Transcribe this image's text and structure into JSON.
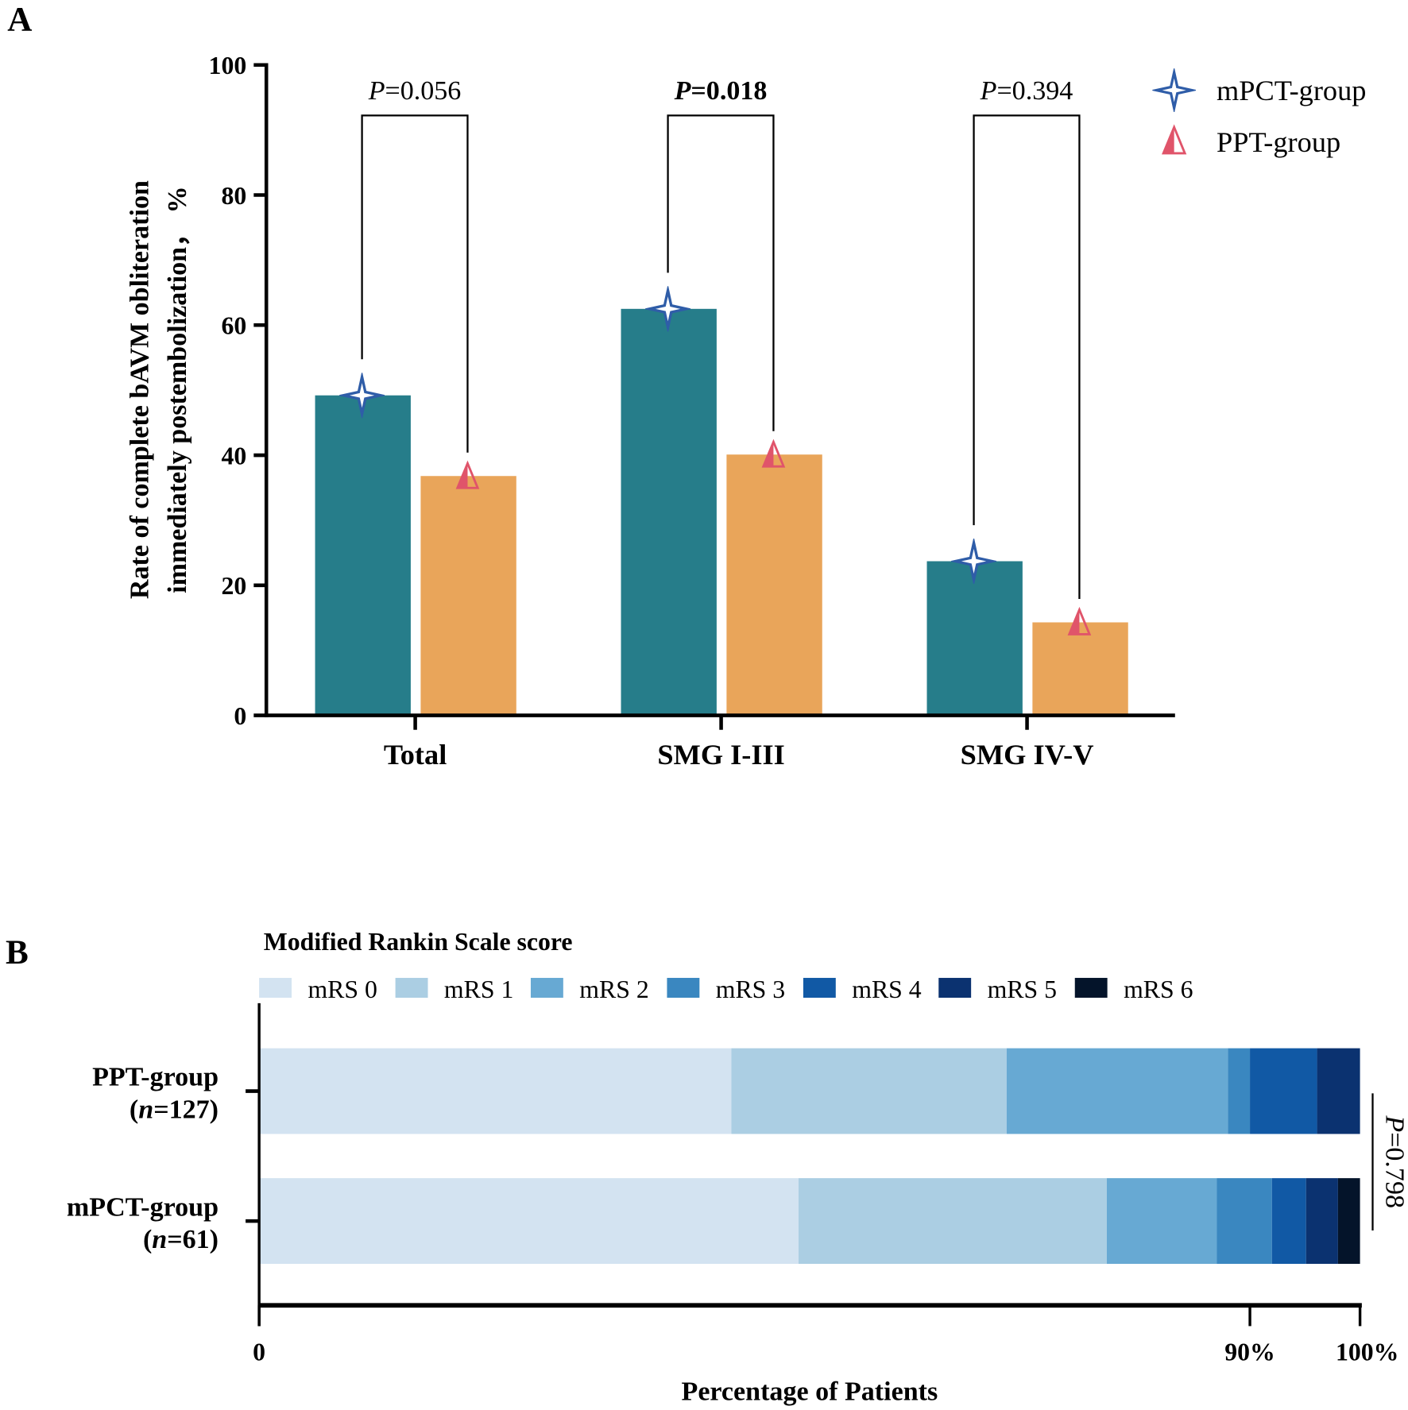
{
  "panel_labels": {
    "a": "A",
    "b": "B"
  },
  "colors": {
    "mpct_bar": "#267D8A",
    "ppt_bar": "#E9A55A",
    "mpct_marker": "#2F5DA8",
    "ppt_marker": "#E0546A",
    "mrs": [
      "#D3E3F1",
      "#ABCEE3",
      "#67A9D3",
      "#3A87C0",
      "#1159A5",
      "#0B3270",
      "#04142A"
    ]
  },
  "chart_data": [
    {
      "type": "bar",
      "panel": "A",
      "ylabel_line1": "Rate of complete bAVM obliteration",
      "ylabel_line2": "immediately postembolization， %",
      "ylim": [
        0,
        100
      ],
      "yticks": [
        "0",
        "20",
        "40",
        "60",
        "80",
        "100"
      ],
      "yticks_values": [
        0,
        20,
        40,
        60,
        80,
        100
      ],
      "categories": [
        "Total",
        "SMG I-III",
        "SMG IV-V"
      ],
      "series": [
        {
          "name": "mPCT-group",
          "values": [
            49.2,
            62.5,
            23.7
          ]
        },
        {
          "name": "PPT-group",
          "values": [
            36.8,
            40.1,
            14.3
          ]
        }
      ],
      "pvalues": [
        {
          "p": "P",
          "rest": "=0.056",
          "bold": false
        },
        {
          "p": "P",
          "rest": "=0.018",
          "bold": true
        },
        {
          "p": "P",
          "rest": "=0.394",
          "bold": false
        }
      ],
      "legend": [
        "mPCT-group",
        "PPT-group"
      ],
      "legend_position": "top-right"
    },
    {
      "type": "bar",
      "subtype": "stacked-horizontal-100",
      "panel": "B",
      "legend_title": "Modified Rankin Scale score",
      "legend": [
        "mRS 0",
        "mRS 1",
        "mRS 2",
        "mRS 3",
        "mRS 4",
        "mRS 5",
        "mRS 6"
      ],
      "categories": [
        {
          "name": "PPT-group",
          "n_prefix": "(",
          "n_italic": "n",
          "n_rest": "=127)"
        },
        {
          "name": "mPCT-group",
          "n_prefix": "(",
          "n_italic": "n",
          "n_rest": "=61)"
        }
      ],
      "series_percent": [
        [
          42.9,
          25.0,
          20.1,
          2.0,
          6.1,
          3.9,
          0.0
        ],
        [
          49.0,
          28.0,
          10.0,
          5.0,
          3.1,
          2.9,
          2.0
        ]
      ],
      "xlabel": "Percentage of Patients",
      "xticks": [
        "0",
        "90%",
        "100%"
      ],
      "xticks_values": [
        0,
        90,
        100
      ],
      "xlim": [
        0,
        100
      ],
      "pvalue": {
        "p": "P",
        "rest": "=0.798"
      }
    }
  ]
}
